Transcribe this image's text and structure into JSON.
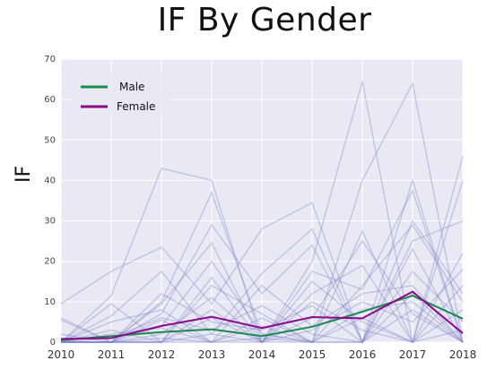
{
  "chart_data": {
    "type": "line",
    "title": "IF By Gender",
    "ylabel": "IF",
    "xlabel": "",
    "x": [
      "2010",
      "2011",
      "2012",
      "2013",
      "2014",
      "2015",
      "2016",
      "2017",
      "2018"
    ],
    "ylim": [
      0,
      70
    ],
    "yticks": [
      0,
      10,
      20,
      30,
      40,
      50,
      60,
      70
    ],
    "grid": true,
    "legend_position": "top-left",
    "series": [
      {
        "name": "Male",
        "color": "#1a8a4f",
        "values": [
          0.5,
          1.5,
          2.5,
          3.2,
          1.5,
          3.8,
          7.5,
          11.5,
          5.8
        ]
      },
      {
        "name": "Female",
        "color": "#8b0a8b",
        "values": [
          0.8,
          1.0,
          4.0,
          6.3,
          3.5,
          6.2,
          5.9,
          12.5,
          2.2
        ]
      }
    ],
    "background_lines": {
      "color": "#7b80c8",
      "values": [
        [
          9.5,
          17.5,
          23.5,
          9.5,
          28.0,
          34.5,
          0.0,
          40.0,
          0.0
        ],
        [
          0.0,
          11.5,
          43.0,
          40.0,
          0.0,
          20.0,
          64.5,
          0.0,
          46.0
        ],
        [
          5.5,
          0.0,
          10.0,
          37.0,
          2.0,
          0.0,
          40.0,
          64.0,
          0.0
        ],
        [
          0.0,
          6.5,
          17.5,
          2.0,
          17.0,
          28.0,
          0.0,
          30.0,
          12.0
        ],
        [
          2.0,
          0.0,
          9.5,
          24.5,
          0.0,
          17.5,
          13.0,
          37.5,
          0.0
        ],
        [
          0.0,
          9.5,
          0.0,
          14.0,
          7.0,
          0.0,
          27.5,
          0.0,
          40.0
        ],
        [
          0.0,
          0.0,
          7.0,
          29.0,
          12.0,
          24.0,
          0.0,
          25.0,
          30.0
        ],
        [
          6.0,
          0.0,
          5.5,
          0.0,
          14.0,
          4.0,
          12.0,
          14.0,
          0.0
        ],
        [
          0.0,
          3.0,
          0.0,
          16.0,
          0.0,
          12.0,
          19.0,
          0.0,
          22.0
        ],
        [
          0.0,
          0.0,
          12.0,
          5.0,
          3.0,
          9.0,
          0.0,
          17.5,
          5.0
        ],
        [
          0.0,
          2.0,
          3.5,
          0.0,
          6.0,
          0.0,
          8.0,
          10.0,
          0.0
        ],
        [
          0.0,
          0.0,
          0.0,
          8.0,
          0.0,
          15.0,
          5.0,
          0.0,
          14.0
        ],
        [
          0.0,
          1.0,
          6.0,
          3.0,
          9.0,
          2.0,
          0.0,
          23.0,
          0.0
        ],
        [
          0.0,
          0.0,
          2.0,
          11.0,
          0.0,
          6.0,
          25.0,
          7.0,
          0.0
        ],
        [
          0.0,
          0.0,
          0.0,
          0.0,
          4.0,
          0.0,
          14.0,
          29.0,
          10.0
        ],
        [
          0.0,
          5.0,
          8.0,
          0.0,
          0.0,
          10.0,
          3.0,
          0.0,
          8.0
        ],
        [
          0.0,
          0.0,
          4.0,
          20.0,
          2.0,
          0.0,
          0.0,
          12.0,
          0.0
        ],
        [
          0.0,
          0.0,
          0.0,
          6.0,
          0.0,
          3.0,
          10.0,
          5.0,
          18.0
        ],
        [
          0.0,
          0.0,
          1.0,
          0.0,
          1.0,
          0.0,
          0.0,
          8.0,
          0.0
        ],
        [
          0.0,
          0.0,
          0.0,
          2.0,
          0.0,
          0.0,
          6.0,
          0.0,
          3.0
        ]
      ]
    }
  }
}
